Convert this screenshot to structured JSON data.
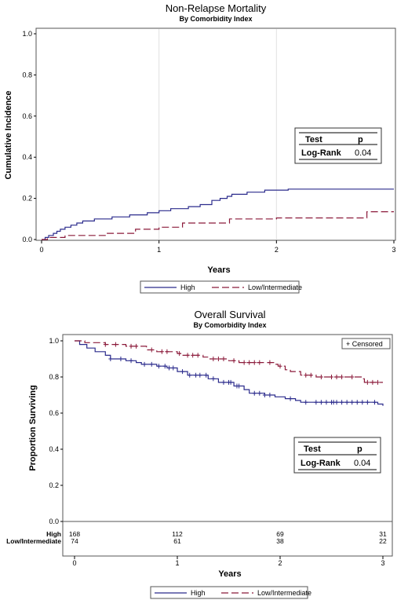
{
  "chart_data": [
    {
      "type": "line",
      "title": "Non-Relapse Mortality",
      "subtitle": "By Comorbidity Index",
      "xlabel": "Years",
      "ylabel": "Cumulative Incidence",
      "xlim": [
        0,
        3
      ],
      "ylim": [
        0,
        1
      ],
      "x_ticks": [
        "0",
        "1",
        "2",
        "3"
      ],
      "y_ticks": [
        "0.0",
        "0.2",
        "0.4",
        "0.6",
        "0.8",
        "1.0"
      ],
      "grid": "vertical",
      "legend_position": "bottom",
      "series": [
        {
          "name": "High",
          "color": "#2b2b8c",
          "style": "solid",
          "points": [
            [
              0,
              0
            ],
            [
              0.03,
              0.01
            ],
            [
              0.06,
              0.02
            ],
            [
              0.1,
              0.03
            ],
            [
              0.13,
              0.04
            ],
            [
              0.16,
              0.05
            ],
            [
              0.2,
              0.06
            ],
            [
              0.25,
              0.07
            ],
            [
              0.3,
              0.08
            ],
            [
              0.35,
              0.09
            ],
            [
              0.45,
              0.1
            ],
            [
              0.6,
              0.11
            ],
            [
              0.75,
              0.12
            ],
            [
              0.9,
              0.13
            ],
            [
              1.0,
              0.14
            ],
            [
              1.1,
              0.15
            ],
            [
              1.25,
              0.16
            ],
            [
              1.35,
              0.17
            ],
            [
              1.45,
              0.19
            ],
            [
              1.52,
              0.2
            ],
            [
              1.58,
              0.21
            ],
            [
              1.62,
              0.22
            ],
            [
              1.75,
              0.23
            ],
            [
              1.9,
              0.24
            ],
            [
              2.1,
              0.245
            ],
            [
              3.0,
              0.245
            ]
          ]
        },
        {
          "name": "Low/Intermediate",
          "color": "#8b1a3a",
          "style": "dashed",
          "points": [
            [
              0,
              0
            ],
            [
              0.05,
              0.01
            ],
            [
              0.2,
              0.02
            ],
            [
              0.55,
              0.03
            ],
            [
              0.8,
              0.05
            ],
            [
              1.0,
              0.06
            ],
            [
              1.2,
              0.08
            ],
            [
              1.6,
              0.1
            ],
            [
              2.0,
              0.105
            ],
            [
              2.75,
              0.105
            ],
            [
              2.77,
              0.135
            ],
            [
              3.0,
              0.135
            ]
          ]
        }
      ],
      "stats_table": {
        "headers": [
          "Test",
          "p"
        ],
        "rows": [
          [
            "Log-Rank",
            "0.04"
          ]
        ]
      }
    },
    {
      "type": "line",
      "title": "Overall Survival",
      "subtitle": "By Comorbidity Index",
      "xlabel": "Years",
      "ylabel": "Proportion Surviving",
      "xlim": [
        0,
        3
      ],
      "ylim": [
        0,
        1
      ],
      "x_ticks": [
        "0",
        "1",
        "2",
        "3"
      ],
      "y_ticks": [
        "0.0",
        "0.2",
        "0.4",
        "0.6",
        "0.8",
        "1.0"
      ],
      "legend_position": "bottom",
      "censored_legend": "+ Censored",
      "series": [
        {
          "name": "High",
          "color": "#2b2b8c",
          "style": "solid",
          "points": [
            [
              0,
              1.0
            ],
            [
              0.05,
              0.98
            ],
            [
              0.12,
              0.96
            ],
            [
              0.2,
              0.94
            ],
            [
              0.3,
              0.92
            ],
            [
              0.35,
              0.9
            ],
            [
              0.5,
              0.89
            ],
            [
              0.6,
              0.88
            ],
            [
              0.65,
              0.87
            ],
            [
              0.8,
              0.86
            ],
            [
              0.9,
              0.85
            ],
            [
              1.0,
              0.83
            ],
            [
              1.1,
              0.81
            ],
            [
              1.3,
              0.79
            ],
            [
              1.4,
              0.77
            ],
            [
              1.55,
              0.75
            ],
            [
              1.65,
              0.73
            ],
            [
              1.7,
              0.71
            ],
            [
              1.85,
              0.7
            ],
            [
              1.95,
              0.69
            ],
            [
              2.05,
              0.68
            ],
            [
              2.15,
              0.67
            ],
            [
              2.2,
              0.66
            ],
            [
              2.9,
              0.66
            ],
            [
              2.95,
              0.65
            ],
            [
              3.0,
              0.64
            ]
          ],
          "censored_x": [
            0.35,
            0.45,
            0.55,
            0.68,
            0.75,
            0.82,
            0.88,
            0.92,
            0.96,
            1.05,
            1.12,
            1.18,
            1.22,
            1.28,
            1.35,
            1.45,
            1.5,
            1.52,
            1.58,
            1.6,
            1.75,
            1.8,
            1.85,
            1.9,
            2.1,
            2.25,
            2.35,
            2.4,
            2.45,
            2.5,
            2.52,
            2.55,
            2.6,
            2.65,
            2.7,
            2.75,
            2.8,
            2.85,
            2.92
          ]
        },
        {
          "name": "Low/Intermediate",
          "color": "#8b1a3a",
          "style": "dashed",
          "points": [
            [
              0,
              1.0
            ],
            [
              0.1,
              0.99
            ],
            [
              0.3,
              0.98
            ],
            [
              0.5,
              0.97
            ],
            [
              0.7,
              0.95
            ],
            [
              0.8,
              0.94
            ],
            [
              1.0,
              0.93
            ],
            [
              1.05,
              0.92
            ],
            [
              1.25,
              0.91
            ],
            [
              1.3,
              0.9
            ],
            [
              1.5,
              0.89
            ],
            [
              1.6,
              0.88
            ],
            [
              1.95,
              0.87
            ],
            [
              1.98,
              0.86
            ],
            [
              2.05,
              0.84
            ],
            [
              2.1,
              0.83
            ],
            [
              2.2,
              0.81
            ],
            [
              2.35,
              0.8
            ],
            [
              2.75,
              0.8
            ],
            [
              2.8,
              0.79
            ],
            [
              2.82,
              0.77
            ],
            [
              3.0,
              0.77
            ]
          ],
          "censored_x": [
            0.3,
            0.4,
            0.55,
            0.6,
            0.75,
            0.85,
            0.9,
            1.02,
            1.1,
            1.15,
            1.2,
            1.35,
            1.4,
            1.45,
            1.55,
            1.65,
            1.7,
            1.75,
            1.8,
            1.9,
            2.0,
            2.25,
            2.3,
            2.4,
            2.5,
            2.55,
            2.6,
            2.7,
            2.85,
            2.9,
            2.95
          ]
        }
      ],
      "stats_table": {
        "headers": [
          "Test",
          "p"
        ],
        "rows": [
          [
            "Log-Rank",
            "0.04"
          ]
        ]
      },
      "at_risk": {
        "times": [
          0,
          1,
          2,
          3
        ],
        "rows": [
          {
            "label": "High",
            "values": [
              "168",
              "112",
              "69",
              "31"
            ]
          },
          {
            "label": "Low/Intermediate",
            "values": [
              "74",
              "61",
              "38",
              "22"
            ]
          }
        ]
      }
    }
  ]
}
